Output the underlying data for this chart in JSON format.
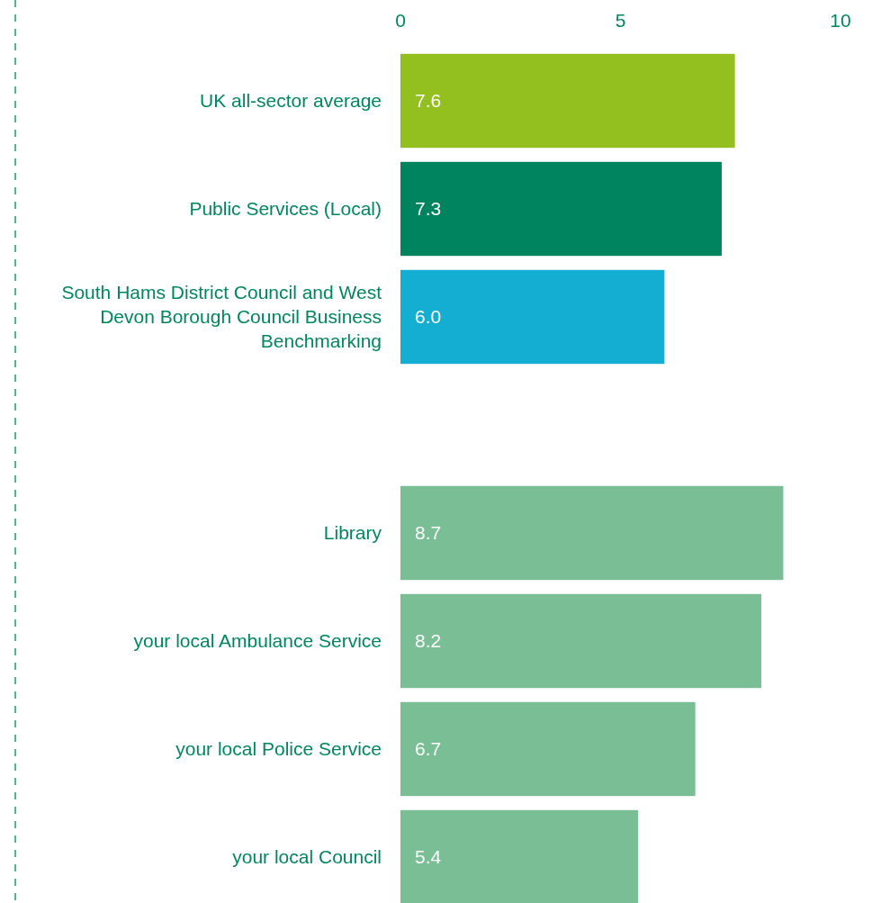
{
  "chart_data": {
    "type": "bar",
    "orientation": "horizontal",
    "categories": [
      "UK all-sector average",
      "Public Services (Local)",
      "South Hams District Council and West Devon Borough Council Business Benchmarking",
      null,
      "Library",
      "your local Ambulance Service",
      "your local Police Service",
      "your local Council"
    ],
    "values": [
      7.6,
      7.3,
      6.0,
      null,
      8.7,
      8.2,
      6.7,
      5.4
    ],
    "colors": [
      "#93c01f",
      "#00845f",
      "#15aed3",
      null,
      "#7abe95",
      "#7abe95",
      "#7abe95",
      "#7abe95"
    ],
    "value_labels": [
      "7.6",
      "7.3",
      "6.0",
      null,
      "8.7",
      "8.2",
      "6.7",
      "5.4"
    ],
    "xlim": [
      0,
      10
    ],
    "xticks": [
      0,
      5,
      10
    ],
    "grid": false
  }
}
